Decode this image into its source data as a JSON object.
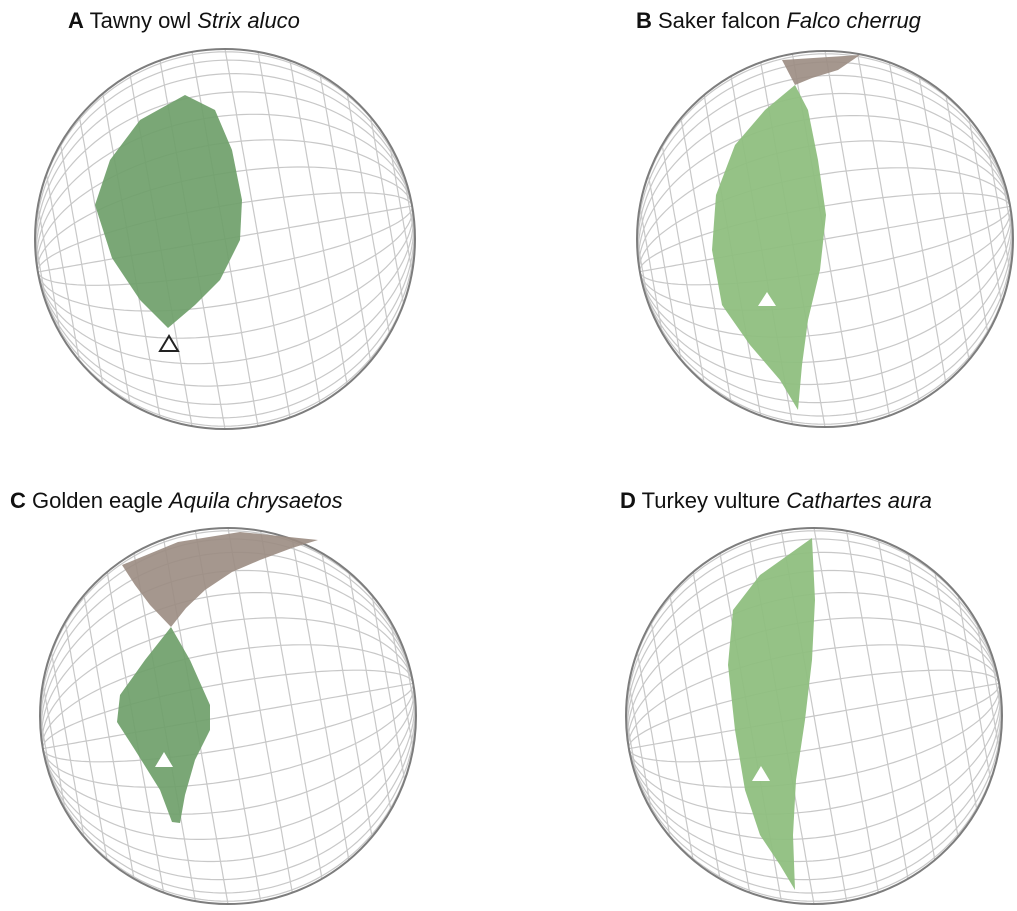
{
  "colors": {
    "grid": "#c8c8c8",
    "outline": "#7d7d7d",
    "visual_field": "#8fbf80",
    "visual_field_dark": "#6fa06a",
    "blind_region": "#9b8c82",
    "marker_fill": "#ffffff",
    "marker_stroke": "#222222"
  },
  "panels": [
    {
      "letter": "A",
      "common_name": " Tawny owl ",
      "scientific_name": "Strix aluco",
      "marker": "outline-triangle",
      "has_blind_region": false
    },
    {
      "letter": "B",
      "common_name": " Saker falcon ",
      "scientific_name": "Falco cherrug",
      "marker": "white-triangle",
      "has_blind_region": true
    },
    {
      "letter": "C",
      "common_name": " Golden eagle ",
      "scientific_name": "Aquila chrysaetos",
      "marker": "white-triangle",
      "has_blind_region": true
    },
    {
      "letter": "D",
      "common_name": " Turkey vulture ",
      "scientific_name": "Cathartes aura",
      "marker": "white-triangle",
      "has_blind_region": false
    }
  ]
}
